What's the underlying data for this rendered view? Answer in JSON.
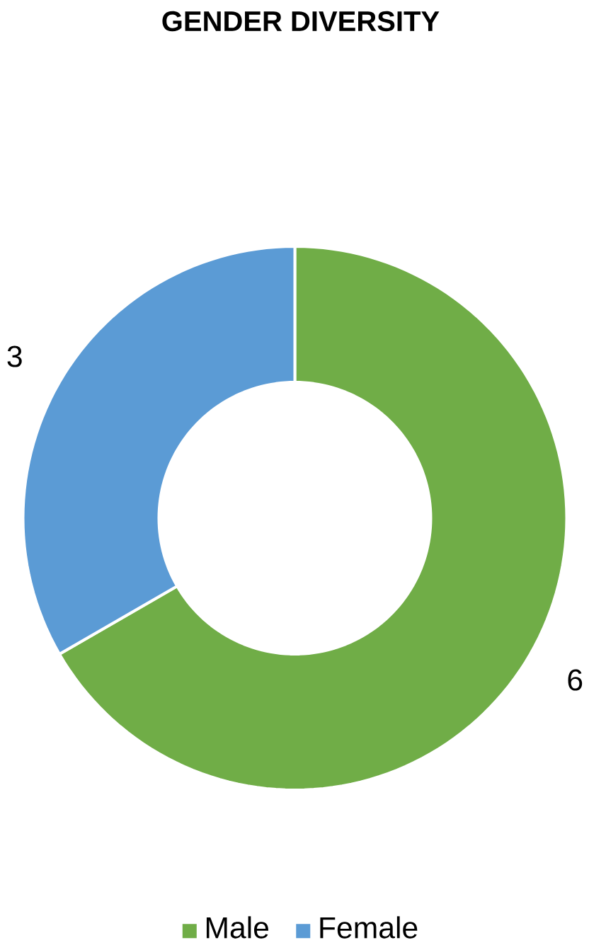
{
  "chart_data": {
    "type": "donut",
    "title": "GENDER DIVERSITY",
    "categories": [
      "Male",
      "Female"
    ],
    "values": [
      6,
      3
    ],
    "colors": [
      "#70ad47",
      "#5b9bd5"
    ],
    "data_labels": true,
    "legend": "bottom"
  }
}
